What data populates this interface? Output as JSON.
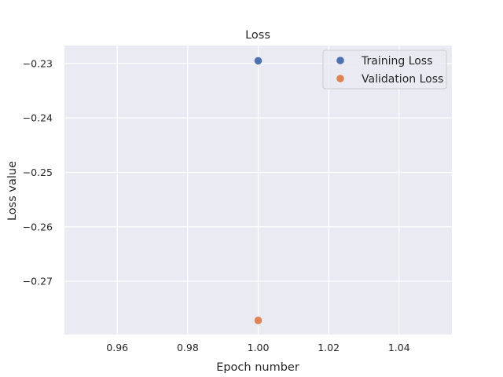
{
  "chart_data": {
    "type": "scatter",
    "title": "Loss",
    "xlabel": "Epoch number",
    "ylabel": "Loss value",
    "xlim": [
      0.945,
      1.055
    ],
    "ylim": [
      -0.2798,
      -0.2267
    ],
    "grid": true,
    "legend_position": "top-right",
    "x_ticks": [
      {
        "value": 0.96,
        "label": "0.96"
      },
      {
        "value": 0.98,
        "label": "0.98"
      },
      {
        "value": 1.0,
        "label": "1.00"
      },
      {
        "value": 1.02,
        "label": "1.02"
      },
      {
        "value": 1.04,
        "label": "1.04"
      }
    ],
    "y_ticks": [
      {
        "value": -0.23,
        "label": "−0.23"
      },
      {
        "value": -0.24,
        "label": "−0.24"
      },
      {
        "value": -0.25,
        "label": "−0.25"
      },
      {
        "value": -0.26,
        "label": "−0.26"
      },
      {
        "value": -0.27,
        "label": "−0.27"
      }
    ],
    "series": [
      {
        "name": "Training Loss",
        "color": "#4c72b0",
        "x": [
          1.0
        ],
        "y": [
          -0.2295
        ]
      },
      {
        "name": "Validation Loss",
        "color": "#dd8452",
        "x": [
          1.0
        ],
        "y": [
          -0.2772
        ]
      }
    ],
    "colors": {
      "plot_background": "#eaeaf2",
      "grid": "#ffffff",
      "text": "#262626"
    }
  }
}
